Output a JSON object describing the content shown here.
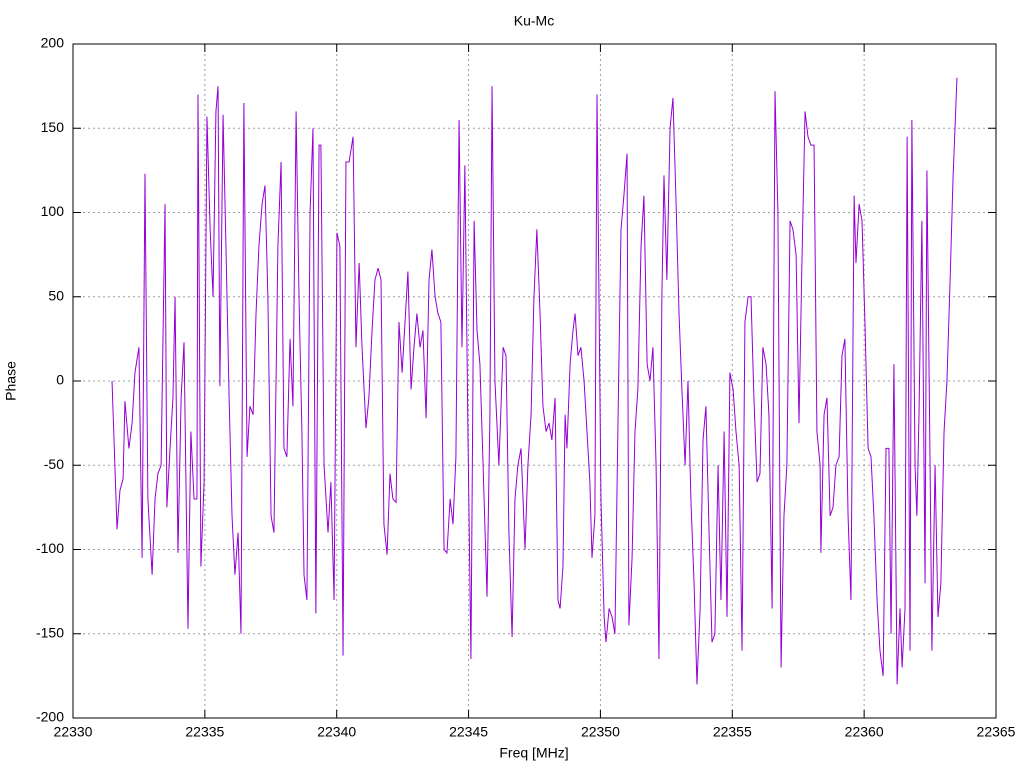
{
  "chart_data": {
    "type": "line",
    "title": "Ku-Mc",
    "x_label": "Freq [MHz]",
    "y_label": "Phase",
    "xlim": [
      22330,
      22365
    ],
    "xticks": [
      22330,
      22335,
      22340,
      22345,
      22350,
      22355,
      22360,
      22365
    ],
    "ylim": [
      -200,
      200
    ],
    "yticks": [
      -200,
      -150,
      -100,
      -50,
      0,
      50,
      100,
      150,
      200
    ],
    "grid": true,
    "x": [
      22331.48,
      22331.67,
      22331.78,
      22331.9,
      22331.97,
      22332.12,
      22332.24,
      22332.35,
      22332.5,
      22332.62,
      22332.73,
      22332.84,
      22333.0,
      22333.11,
      22333.22,
      22333.34,
      22333.49,
      22333.56,
      22333.68,
      22333.79,
      22333.87,
      22333.98,
      22334.1,
      22334.21,
      22334.36,
      22334.47,
      22334.59,
      22334.7,
      22334.74,
      22334.85,
      22334.97,
      22335.08,
      22335.2,
      22335.31,
      22335.42,
      22335.5,
      22335.57,
      22335.69,
      22335.8,
      22335.92,
      22336.03,
      22336.14,
      22336.26,
      22336.37,
      22336.48,
      22336.6,
      22336.71,
      22336.83,
      22336.94,
      22337.05,
      22337.17,
      22337.28,
      22337.39,
      22337.51,
      22337.62,
      22337.77,
      22337.89,
      22338.0,
      22338.11,
      22338.23,
      22338.34,
      22338.46,
      22338.57,
      22338.68,
      22338.76,
      22338.87,
      22338.99,
      22339.1,
      22339.21,
      22339.33,
      22339.4,
      22339.52,
      22339.67,
      22339.78,
      22339.9,
      22340.01,
      22340.12,
      22340.24,
      22340.35,
      22340.47,
      22340.62,
      22340.73,
      22340.85,
      22340.96,
      22341.11,
      22341.22,
      22341.34,
      22341.45,
      22341.57,
      22341.68,
      22341.79,
      22341.91,
      22342.02,
      22342.13,
      22342.25,
      22342.36,
      22342.48,
      22342.59,
      22342.7,
      22342.82,
      22342.93,
      22343.04,
      22343.16,
      22343.27,
      22343.39,
      22343.5,
      22343.61,
      22343.73,
      22343.84,
      22343.95,
      22344.07,
      22344.18,
      22344.3,
      22344.41,
      22344.52,
      22344.64,
      22344.75,
      22344.86,
      22344.98,
      22345.09,
      22345.21,
      22345.32,
      22345.43,
      22345.55,
      22345.7,
      22345.81,
      22345.89,
      22346.0,
      22346.15,
      22346.31,
      22346.42,
      22346.53,
      22346.65,
      22346.76,
      22346.87,
      22346.99,
      22347.14,
      22347.25,
      22347.37,
      22347.48,
      22347.59,
      22347.71,
      22347.82,
      22347.94,
      22348.05,
      22348.16,
      22348.28,
      22348.39,
      22348.47,
      22348.58,
      22348.66,
      22348.73,
      22348.85,
      22348.96,
      22349.04,
      22349.15,
      22349.26,
      22349.38,
      22349.49,
      22349.6,
      22349.68,
      22349.79,
      22349.87,
      22350.02,
      22350.14,
      22350.21,
      22350.33,
      22350.44,
      22350.55,
      22350.67,
      22350.78,
      22350.89,
      22351.01,
      22351.08,
      22351.2,
      22351.31,
      22351.42,
      22351.54,
      22351.65,
      22351.77,
      22351.88,
      22351.99,
      22352.11,
      22352.22,
      22352.33,
      22352.41,
      22352.52,
      22352.64,
      22352.75,
      22352.87,
      22352.98,
      22353.09,
      22353.21,
      22353.32,
      22353.43,
      22353.55,
      22353.66,
      22353.78,
      22353.89,
      22354.0,
      22354.12,
      22354.23,
      22354.34,
      22354.46,
      22354.57,
      22354.69,
      22354.8,
      22354.91,
      22355.03,
      22355.14,
      22355.26,
      22355.37,
      22355.48,
      22355.6,
      22355.71,
      22355.82,
      22355.94,
      22356.05,
      22356.16,
      22356.28,
      22356.39,
      22356.51,
      22356.62,
      22356.73,
      22356.85,
      22356.96,
      22357.07,
      22357.19,
      22357.3,
      22357.42,
      22357.53,
      22357.64,
      22357.76,
      22357.87,
      22357.98,
      22358.1,
      22358.21,
      22358.33,
      22358.36,
      22358.48,
      22358.59,
      22358.71,
      22358.82,
      22358.93,
      22359.05,
      22359.16,
      22359.27,
      22359.39,
      22359.5,
      22359.62,
      22359.69,
      22359.81,
      22359.92,
      22360.03,
      22360.15,
      22360.26,
      22360.37,
      22360.49,
      22360.6,
      22360.72,
      22360.83,
      22360.94,
      22361.02,
      22361.13,
      22361.25,
      22361.36,
      22361.44,
      22361.55,
      22361.63,
      22361.74,
      22361.81,
      22361.93,
      22362.0,
      22362.08,
      22362.19,
      22362.31,
      22362.38,
      22362.5,
      22362.57,
      22362.69,
      22362.8,
      22362.91,
      22363.03,
      22363.14,
      22363.26,
      22363.37,
      22363.52
    ],
    "series": [
      {
        "color": "#9400d3",
        "values": [
          0,
          -88,
          -65,
          -58,
          -12,
          -40,
          -25,
          5,
          20,
          -105,
          123,
          -70,
          -115,
          -70,
          -55,
          -50,
          105,
          -75,
          -40,
          -10,
          50,
          -102,
          -10,
          23,
          -147,
          -30,
          -70,
          -70,
          170,
          -110,
          -60,
          157,
          90,
          50,
          160,
          175,
          -3,
          158,
          80,
          -10,
          -80,
          -115,
          -90,
          -150,
          165,
          -45,
          -15,
          -20,
          40,
          80,
          105,
          116,
          50,
          -80,
          -90,
          80,
          130,
          -40,
          -45,
          25,
          -15,
          160,
          50,
          -30,
          -115,
          -130,
          100,
          150,
          -138,
          140,
          140,
          -50,
          -90,
          -60,
          -130,
          88,
          80,
          -163,
          130,
          130,
          145,
          20,
          70,
          20,
          -28,
          -10,
          30,
          60,
          67,
          60,
          -85,
          -103,
          -55,
          -70,
          -72,
          35,
          5,
          35,
          65,
          -5,
          20,
          40,
          20,
          30,
          -22,
          60,
          78,
          50,
          40,
          35,
          -100,
          -102,
          -70,
          -85,
          -45,
          155,
          20,
          128,
          -35,
          -165,
          95,
          30,
          10,
          -50,
          -128,
          -20,
          175,
          0,
          -50,
          20,
          15,
          -90,
          -152,
          -70,
          -50,
          -40,
          -100,
          -50,
          -20,
          50,
          90,
          40,
          -15,
          -30,
          -25,
          -35,
          -10,
          -130,
          -135,
          -110,
          -20,
          -40,
          10,
          30,
          40,
          15,
          20,
          0,
          -30,
          -60,
          -105,
          -80,
          170,
          -70,
          -140,
          -155,
          -135,
          -140,
          -150,
          -20,
          90,
          110,
          135,
          -145,
          -105,
          -30,
          -5,
          80,
          110,
          10,
          0,
          20,
          -50,
          -165,
          50,
          122,
          60,
          150,
          168,
          105,
          40,
          -5,
          -50,
          0,
          -70,
          -120,
          -180,
          -135,
          -35,
          -15,
          -90,
          -155,
          -150,
          -50,
          -130,
          -30,
          -140,
          5,
          -5,
          -30,
          -50,
          -160,
          35,
          50,
          50,
          -10,
          -60,
          -55,
          20,
          10,
          -20,
          -135,
          172,
          100,
          -170,
          -80,
          -50,
          95,
          90,
          75,
          -25,
          70,
          160,
          145,
          140,
          140,
          -30,
          -50,
          -102,
          -20,
          -10,
          -80,
          -75,
          -50,
          -45,
          15,
          25,
          -80,
          -130,
          110,
          70,
          105,
          95,
          35,
          -40,
          -45,
          -80,
          -130,
          -160,
          -175,
          -40,
          -40,
          -150,
          10,
          -180,
          -135,
          -170,
          -135,
          145,
          -160,
          155,
          -50,
          -80,
          -20,
          95,
          -120,
          125,
          -50,
          -160,
          -50,
          -140,
          -120,
          -30,
          0,
          60,
          120,
          180
        ]
      }
    ]
  }
}
